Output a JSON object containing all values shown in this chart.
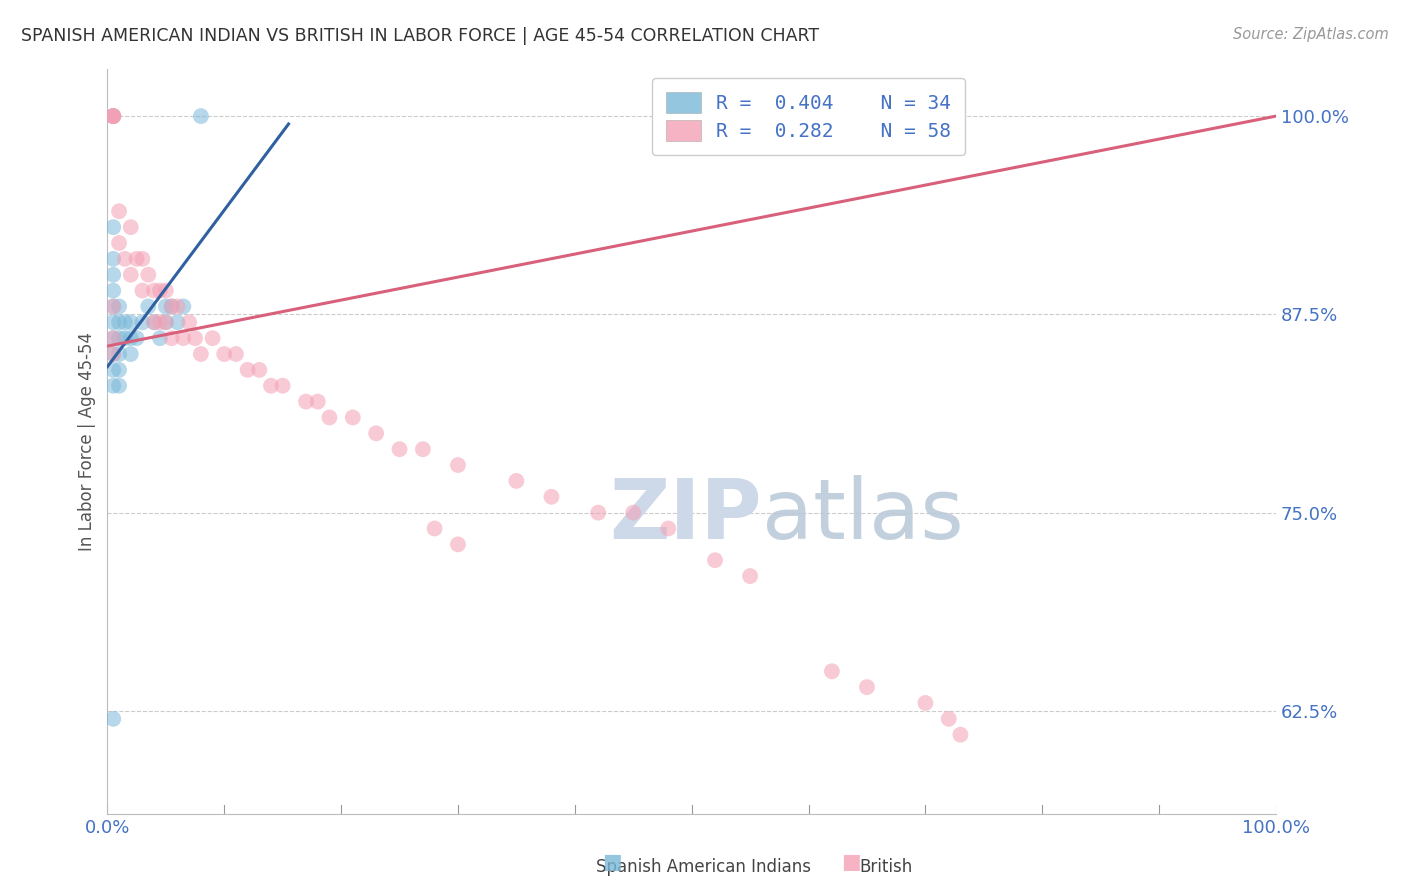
{
  "title": "SPANISH AMERICAN INDIAN VS BRITISH IN LABOR FORCE | AGE 45-54 CORRELATION CHART",
  "source": "Source: ZipAtlas.com",
  "ylabel": "In Labor Force | Age 45-54",
  "xlim": [
    0.0,
    1.0
  ],
  "ylim": [
    0.56,
    1.03
  ],
  "yticks": [
    0.625,
    0.75,
    0.875,
    1.0
  ],
  "ytick_labels": [
    "62.5%",
    "75.0%",
    "87.5%",
    "100.0%"
  ],
  "xticks": [
    0.0,
    1.0
  ],
  "xtick_labels": [
    "0.0%",
    "100.0%"
  ],
  "legend_r1": "R = 0.404",
  "legend_n1": "N = 34",
  "legend_r2": "R = 0.282",
  "legend_n2": "N = 58",
  "blue_color": "#7ab8d9",
  "pink_color": "#f4a0b5",
  "blue_line_color": "#3060a0",
  "pink_line_color": "#d9607a",
  "title_color": "#333333",
  "source_color": "#999999",
  "axis_label_color": "#555555",
  "tick_label_color": "#4472c4",
  "grid_color": "#cccccc",
  "watermark_color": "#cdd8e8",
  "blue_scatter_x": [
    0.005,
    0.08,
    0.005,
    0.005,
    0.005,
    0.005,
    0.005,
    0.005,
    0.005,
    0.005,
    0.005,
    0.005,
    0.01,
    0.01,
    0.01,
    0.01,
    0.01,
    0.01,
    0.015,
    0.015,
    0.02,
    0.02,
    0.02,
    0.025,
    0.03,
    0.035,
    0.04,
    0.045,
    0.05,
    0.055,
    0.06,
    0.065,
    0.05,
    0.005
  ],
  "blue_scatter_y": [
    1.0,
    1.0,
    0.93,
    0.91,
    0.9,
    0.89,
    0.88,
    0.87,
    0.86,
    0.85,
    0.84,
    0.83,
    0.88,
    0.87,
    0.86,
    0.85,
    0.84,
    0.83,
    0.87,
    0.86,
    0.87,
    0.86,
    0.85,
    0.86,
    0.87,
    0.88,
    0.87,
    0.86,
    0.87,
    0.88,
    0.87,
    0.88,
    0.88,
    0.62
  ],
  "pink_scatter_x": [
    0.005,
    0.005,
    0.005,
    0.005,
    0.01,
    0.01,
    0.015,
    0.02,
    0.02,
    0.025,
    0.03,
    0.03,
    0.035,
    0.04,
    0.04,
    0.045,
    0.045,
    0.05,
    0.05,
    0.055,
    0.055,
    0.06,
    0.065,
    0.07,
    0.075,
    0.08,
    0.09,
    0.1,
    0.11,
    0.12,
    0.13,
    0.14,
    0.15,
    0.17,
    0.18,
    0.19,
    0.21,
    0.23,
    0.25,
    0.27,
    0.3,
    0.35,
    0.38,
    0.42,
    0.45,
    0.48,
    0.28,
    0.3,
    0.52,
    0.55,
    0.62,
    0.65,
    0.7,
    0.72,
    0.73,
    0.005,
    0.005,
    0.005
  ],
  "pink_scatter_y": [
    1.0,
    1.0,
    1.0,
    1.0,
    0.94,
    0.92,
    0.91,
    0.93,
    0.9,
    0.91,
    0.91,
    0.89,
    0.9,
    0.89,
    0.87,
    0.89,
    0.87,
    0.89,
    0.87,
    0.88,
    0.86,
    0.88,
    0.86,
    0.87,
    0.86,
    0.85,
    0.86,
    0.85,
    0.85,
    0.84,
    0.84,
    0.83,
    0.83,
    0.82,
    0.82,
    0.81,
    0.81,
    0.8,
    0.79,
    0.79,
    0.78,
    0.77,
    0.76,
    0.75,
    0.75,
    0.74,
    0.74,
    0.73,
    0.72,
    0.71,
    0.65,
    0.64,
    0.63,
    0.62,
    0.61,
    0.88,
    0.86,
    0.85
  ],
  "blue_trend_x": [
    0.0,
    0.155
  ],
  "blue_trend_y": [
    0.842,
    0.995
  ],
  "pink_trend_x": [
    0.0,
    1.0
  ],
  "pink_trend_y": [
    0.855,
    1.0
  ]
}
